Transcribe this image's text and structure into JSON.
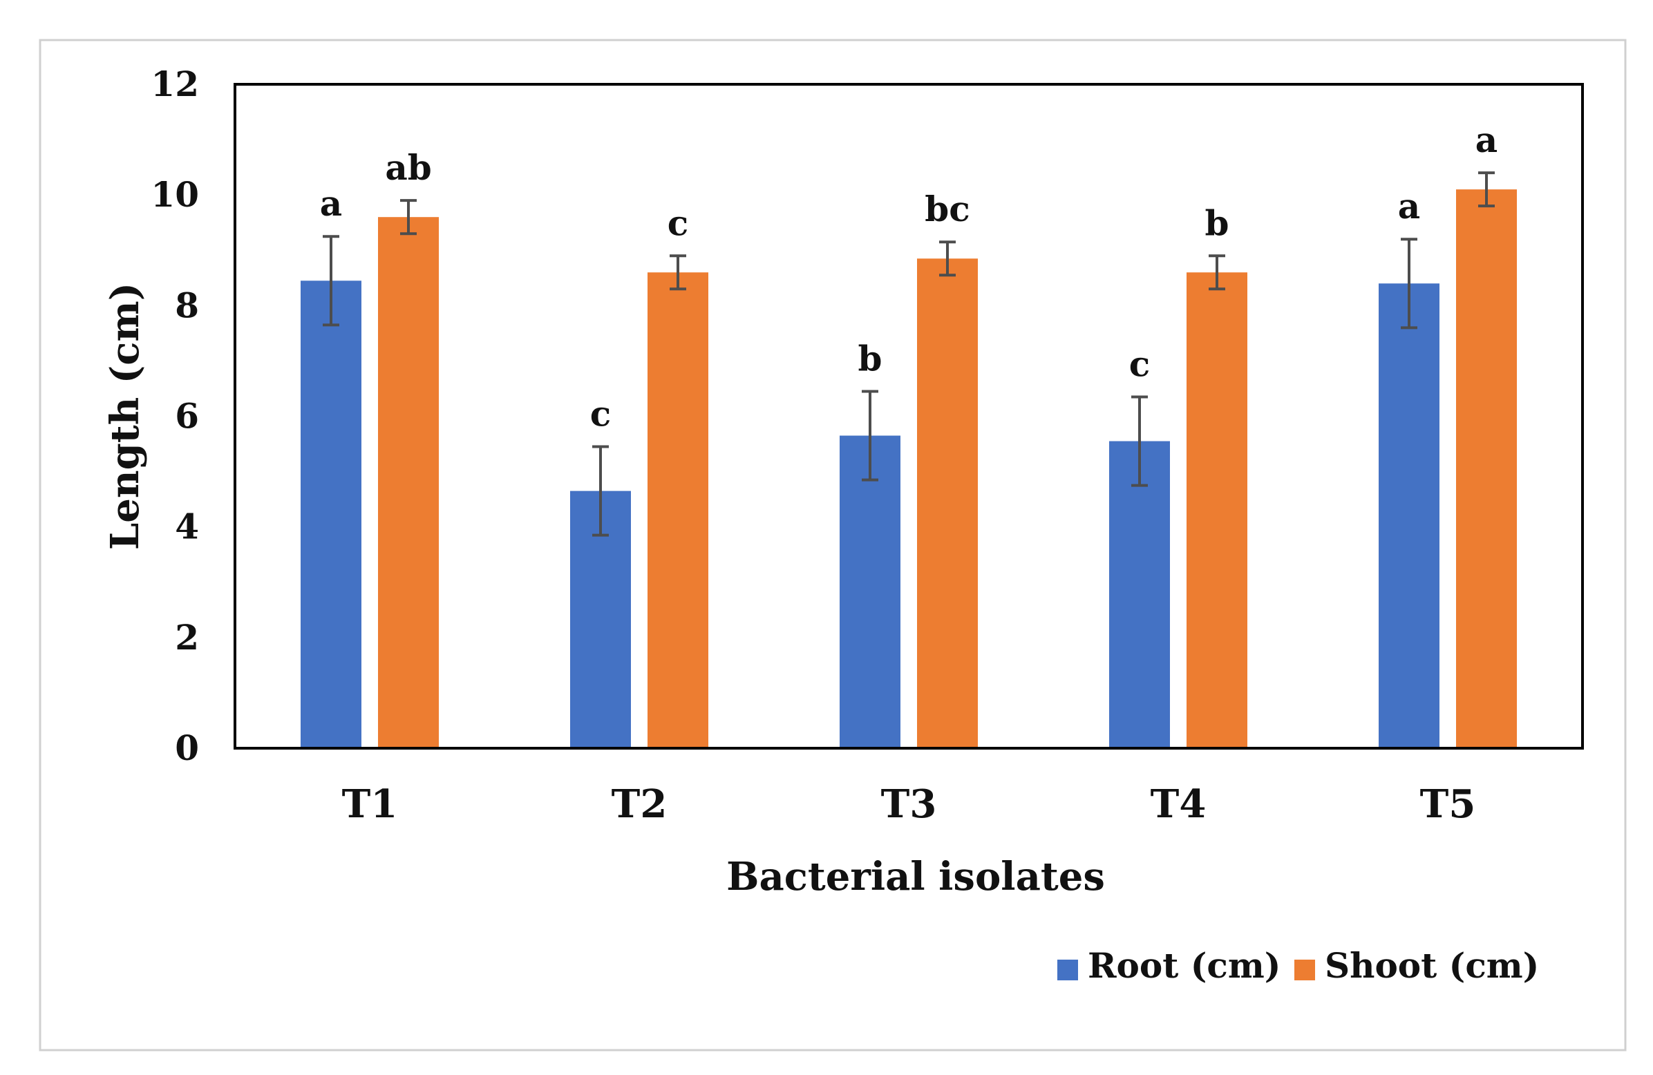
{
  "chart_data": {
    "type": "bar",
    "title": "",
    "xlabel": "Bacterial isolates",
    "ylabel": "Length (cm)",
    "ylim": [
      0,
      12
    ],
    "yticks": [
      0,
      2,
      4,
      6,
      8,
      10,
      12
    ],
    "grid": false,
    "legend_position": "bottom-right",
    "categories": [
      "T1",
      "T2",
      "T3",
      "T4",
      "T5"
    ],
    "series": [
      {
        "name": "Root (cm)",
        "color": "#4472C4",
        "values": [
          8.45,
          4.65,
          5.65,
          5.55,
          8.4
        ],
        "errors": [
          0.8,
          0.8,
          0.8,
          0.8,
          0.8
        ],
        "letters": [
          "a",
          "c",
          "b",
          "c",
          "a"
        ]
      },
      {
        "name": "Shoot (cm)",
        "color": "#ED7D31",
        "values": [
          9.6,
          8.6,
          8.85,
          8.6,
          10.1
        ],
        "errors": [
          0.3,
          0.3,
          0.3,
          0.3,
          0.3
        ],
        "letters": [
          "ab",
          "c",
          "bc",
          "b",
          "a"
        ]
      }
    ]
  }
}
